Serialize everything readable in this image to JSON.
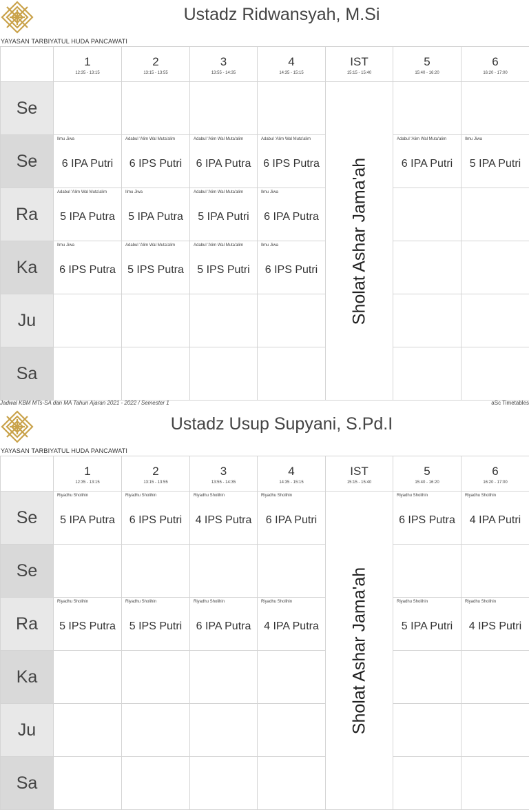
{
  "school": "YAYASAN TARBIYATUL HUDA PANCAWATI",
  "footer_left": "Jadwal KBM MTs-SA dan MA Tahun Ajaran 2021 - 2022 / Semester 1",
  "footer_right": "aSc Timetables",
  "ist_label": "Sholat Ashar Jama'ah",
  "periods": [
    {
      "num": "1",
      "time": "12:35 - 13:15"
    },
    {
      "num": "2",
      "time": "13:15 - 13:55"
    },
    {
      "num": "3",
      "time": "13:55 - 14:35"
    },
    {
      "num": "4",
      "time": "14:35 - 15:15"
    },
    {
      "num": "IST",
      "time": "15:15 - 15:40"
    },
    {
      "num": "5",
      "time": "15:40 - 16:20"
    },
    {
      "num": "6",
      "time": "16:20 - 17:00"
    }
  ],
  "days": [
    "Se",
    "Se",
    "Ra",
    "Ka",
    "Ju",
    "Sa"
  ],
  "teachers": [
    {
      "name": "Ustadz Ridwansyah, M.Si",
      "rows": [
        [
          null,
          null,
          null,
          null,
          null,
          null
        ],
        [
          {
            "s": "Ilmu Jiwa",
            "c": "6 IPA Putri"
          },
          {
            "s": "Adabul 'Alim Wal Muta'alim",
            "c": "6 IPS Putri"
          },
          {
            "s": "Adabul 'Alim Wal Muta'alim",
            "c": "6 IPA Putra"
          },
          {
            "s": "Adabul 'Alim Wal Muta'alim",
            "c": "6 IPS Putra"
          },
          {
            "s": "Adabul 'Alim Wal Muta'alim",
            "c": "6 IPA Putri"
          },
          {
            "s": "Ilmu Jiwa",
            "c": "5 IPA Putri"
          }
        ],
        [
          {
            "s": "Adabul 'Alim Wal Muta'alim",
            "c": "5 IPA Putra"
          },
          {
            "s": "Ilmu Jiwa",
            "c": "5 IPA Putra"
          },
          {
            "s": "Adabul 'Alim Wal Muta'alim",
            "c": "5 IPA Putri"
          },
          {
            "s": "Ilmu Jiwa",
            "c": "6 IPA Putra"
          },
          null,
          null
        ],
        [
          {
            "s": "Ilmu Jiwa",
            "c": "6 IPS Putra"
          },
          {
            "s": "Adabul 'Alim Wal Muta'alim",
            "c": "5 IPS Putra"
          },
          {
            "s": "Adabul 'Alim Wal Muta'alim",
            "c": "5 IPS Putri"
          },
          {
            "s": "Ilmu Jiwa",
            "c": "6 IPS Putri"
          },
          null,
          null
        ],
        [
          null,
          null,
          null,
          null,
          null,
          null
        ],
        [
          null,
          null,
          null,
          null,
          null,
          null
        ]
      ]
    },
    {
      "name": "Ustadz Usup Supyani, S.Pd.I",
      "rows": [
        [
          {
            "s": "Riyadhu Sholihin",
            "c": "5 IPA Putra"
          },
          {
            "s": "Riyadhu Sholihin",
            "c": "6 IPS Putri"
          },
          {
            "s": "Riyadhu Sholihin",
            "c": "4 IPS Putra"
          },
          {
            "s": "Riyadhu Sholihin",
            "c": "6 IPA Putri"
          },
          {
            "s": "Riyadhu Sholihin",
            "c": "6 IPS Putra"
          },
          {
            "s": "Riyadhu Sholihin",
            "c": "4 IPA Putri"
          }
        ],
        [
          null,
          null,
          null,
          null,
          null,
          null
        ],
        [
          {
            "s": "Riyadhu Sholihin",
            "c": "5 IPS Putra"
          },
          {
            "s": "Riyadhu Sholihin",
            "c": "5 IPS Putri"
          },
          {
            "s": "Riyadhu Sholihin",
            "c": "6 IPA Putra"
          },
          {
            "s": "Riyadhu Sholihin",
            "c": "4 IPA Putra"
          },
          {
            "s": "Riyadhu Sholihin",
            "c": "5 IPA Putri"
          },
          {
            "s": "Riyadhu Sholihin",
            "c": "4 IPS Putri"
          }
        ],
        [
          null,
          null,
          null,
          null,
          null,
          null
        ],
        [
          null,
          null,
          null,
          null,
          null,
          null
        ],
        [
          null,
          null,
          null,
          null,
          null,
          null
        ]
      ]
    }
  ]
}
